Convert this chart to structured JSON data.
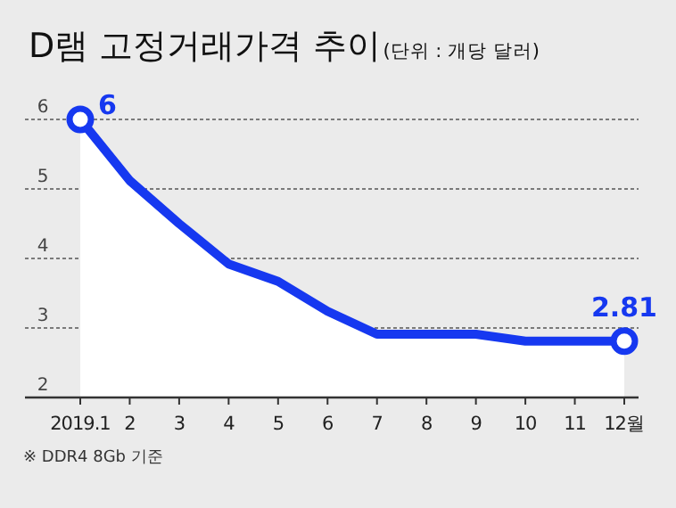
{
  "chart_data": {
    "type": "area",
    "title": "D램 고정거래가격 추이",
    "subtitle": "(단위 : 개당 달러)",
    "categories": [
      "2019.1",
      "2",
      "3",
      "4",
      "5",
      "6",
      "7",
      "8",
      "9",
      "10",
      "11",
      "12월"
    ],
    "series": [
      {
        "color": "#1638f0",
        "values": [
          6,
          5.12,
          4.5,
          3.92,
          3.67,
          3.24,
          2.91,
          2.91,
          2.91,
          2.81,
          2.81,
          2.81
        ],
        "value_labels": [
          "6",
          null,
          null,
          null,
          null,
          null,
          null,
          null,
          null,
          null,
          null,
          "2.81"
        ]
      }
    ],
    "ylim": [
      2,
      6
    ],
    "yticks": [
      2,
      3,
      4,
      5,
      6
    ],
    "grid": "y",
    "line_style": "solid",
    "annotations": [
      "※ DDR4 8Gb 기준"
    ]
  }
}
